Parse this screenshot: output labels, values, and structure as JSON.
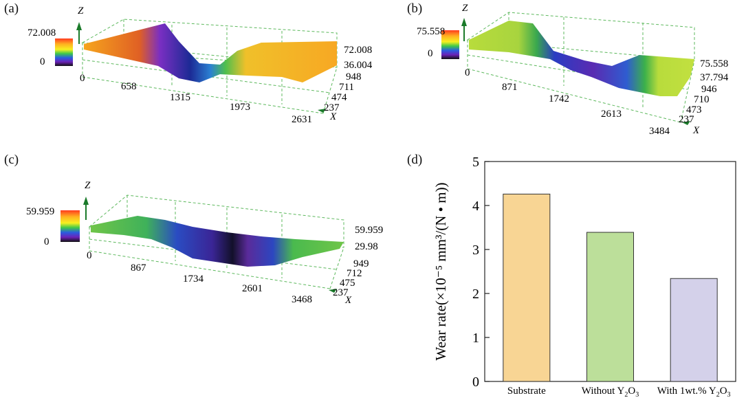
{
  "panels": [
    {
      "label": "(a)",
      "z_axis": "Z",
      "x_axis": "X",
      "colorbar": {
        "max": "72.008",
        "min": "0"
      },
      "z_ticks": [
        "72.008",
        "36.004"
      ],
      "x_ticks": [
        "0",
        "658",
        "1315",
        "1973",
        "2631"
      ],
      "y_ticks": [
        "948",
        "711",
        "474",
        "237"
      ],
      "surface_colors": [
        "#f7a21b",
        "#d84a24",
        "#6a2fb8",
        "#1f2a9a",
        "#3a8fd0",
        "#56c44a",
        "#f2c830"
      ]
    },
    {
      "label": "(b)",
      "z_axis": "Z",
      "x_axis": "X",
      "colorbar": {
        "max": "75.558",
        "min": "0"
      },
      "z_ticks": [
        "75.558",
        "37.794"
      ],
      "x_ticks": [
        "0",
        "871",
        "1742",
        "2613",
        "3484"
      ],
      "y_ticks": [
        "946",
        "710",
        "473",
        "237"
      ],
      "surface_colors": [
        "#b7dc3c",
        "#46b04a",
        "#2b3fc0",
        "#3b2dae",
        "#7a2bb0",
        "#2e7fd0",
        "#b7dc3c"
      ]
    },
    {
      "label": "(c)",
      "z_axis": "Z",
      "x_axis": "X",
      "colorbar": {
        "max": "59.959",
        "min": "0"
      },
      "z_ticks": [
        "59.959",
        "29.98"
      ],
      "x_ticks": [
        "0",
        "867",
        "1734",
        "2601",
        "3468"
      ],
      "y_ticks": [
        "949",
        "712",
        "475",
        "237"
      ],
      "surface_colors": [
        "#6fc548",
        "#2a8f88",
        "#2b3fb8",
        "#3b1d7a",
        "#12102a",
        "#5a2b9a",
        "#6fc548"
      ]
    }
  ],
  "chart_data": {
    "type": "bar",
    "panel_label": "(d)",
    "categories": [
      "Substrate",
      "Without Y2O3",
      "With 1wt.% Y2O3"
    ],
    "values": [
      4.26,
      3.39,
      2.34
    ],
    "bar_colors": [
      "#f8d594",
      "#bcdf9a",
      "#d4d1ea"
    ],
    "ylabel": "Wear rate(×10⁻⁵ mm³/(N • m))",
    "xlabel": "",
    "ylim": [
      0,
      5
    ],
    "yticks": [
      0,
      1,
      2,
      3,
      4,
      5
    ],
    "grid": false,
    "legend": "none"
  }
}
